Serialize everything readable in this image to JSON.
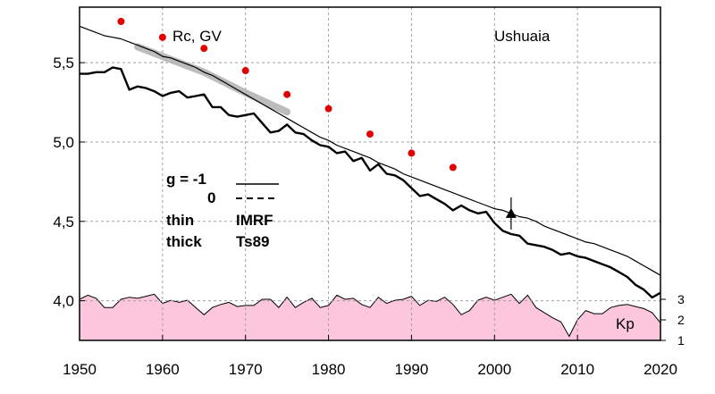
{
  "chart_data": {
    "type": "line",
    "title": "Ushuaia",
    "ylabel": "Rc, GV",
    "xlim": [
      1950,
      2020
    ],
    "ylim": [
      3.75,
      5.85
    ],
    "xticks": [
      "1950",
      "1960",
      "1970",
      "1980",
      "1990",
      "2000",
      "2010",
      "2020"
    ],
    "yticks": [
      "4,0",
      "4,5",
      "5,0",
      "5,5"
    ],
    "grid": true,
    "legend": {
      "rows": [
        {
          "label": "g  = -1"
        },
        {
          "label": "0"
        },
        {
          "label": "thin",
          "value": "IMRF"
        },
        {
          "label": "thick",
          "value": "Ts89"
        }
      ]
    },
    "series": [
      {
        "x": [
          1950,
          1951,
          1952,
          1953,
          1954,
          1955,
          1956,
          1957,
          1958,
          1959,
          1960,
          1961,
          1962,
          1963,
          1964,
          1965,
          1966,
          1967,
          1968,
          1969,
          1970,
          1971,
          1972,
          1973,
          1974,
          1975,
          1976,
          1977,
          1978,
          1979,
          1980,
          1981,
          1982,
          1983,
          1984,
          1985,
          1986,
          1987,
          1988,
          1989,
          1990,
          1991,
          1992,
          1993,
          1994,
          1995,
          1996,
          1997,
          1998,
          1999,
          2000,
          2001,
          2002,
          2003,
          2004,
          2005,
          2006,
          2007,
          2008,
          2009,
          2010,
          2011,
          2012,
          2013,
          2014,
          2015,
          2016,
          2017,
          2018,
          2019,
          2020
        ],
        "values": [
          5.73,
          5.71,
          5.69,
          5.67,
          5.66,
          5.65,
          5.63,
          5.61,
          5.59,
          5.57,
          5.54,
          5.53,
          5.51,
          5.49,
          5.47,
          5.44,
          5.42,
          5.39,
          5.36,
          5.33,
          5.3,
          5.27,
          5.24,
          5.21,
          5.18,
          5.15,
          5.12,
          5.09,
          5.06,
          5.03,
          5.01,
          4.98,
          4.96,
          4.94,
          4.92,
          4.9,
          4.87,
          4.85,
          4.83,
          4.8,
          4.78,
          4.76,
          4.74,
          4.72,
          4.7,
          4.68,
          4.66,
          4.64,
          4.62,
          4.6,
          4.58,
          4.57,
          4.55,
          4.53,
          4.52,
          4.5,
          4.47,
          4.45,
          4.43,
          4.41,
          4.39,
          4.37,
          4.36,
          4.34,
          4.32,
          4.3,
          4.28,
          4.25,
          4.22,
          4.19,
          4.16
        ]
      },
      {
        "x": [
          1950,
          1951,
          1952,
          1953,
          1954,
          1955,
          1956,
          1957,
          1958,
          1959,
          1960,
          1961,
          1962,
          1963,
          1964,
          1965,
          1966,
          1967,
          1968,
          1969,
          1970,
          1971,
          1972,
          1973,
          1974,
          1975,
          1976,
          1977,
          1978,
          1979,
          1980,
          1981,
          1982,
          1983,
          1984,
          1985,
          1986,
          1987,
          1988,
          1989,
          1990,
          1991,
          1992,
          1993,
          1994,
          1995,
          1996,
          1997,
          1998,
          1999,
          2000,
          2001,
          2002,
          2003,
          2004,
          2005,
          2006,
          2007,
          2008,
          2009,
          2010,
          2011,
          2012,
          2013,
          2014,
          2015,
          2016,
          2017,
          2018,
          2019,
          2020
        ],
        "values": [
          5.43,
          5.43,
          5.44,
          5.44,
          5.47,
          5.46,
          5.33,
          5.35,
          5.34,
          5.32,
          5.29,
          5.31,
          5.32,
          5.28,
          5.29,
          5.3,
          5.22,
          5.22,
          5.17,
          5.16,
          5.17,
          5.18,
          5.12,
          5.06,
          5.07,
          5.11,
          5.06,
          5.05,
          5.01,
          4.98,
          4.97,
          4.93,
          4.94,
          4.88,
          4.9,
          4.82,
          4.86,
          4.8,
          4.79,
          4.76,
          4.71,
          4.66,
          4.67,
          4.64,
          4.61,
          4.57,
          4.6,
          4.57,
          4.55,
          4.56,
          4.49,
          4.44,
          4.42,
          4.41,
          4.36,
          4.35,
          4.34,
          4.32,
          4.29,
          4.3,
          4.28,
          4.27,
          4.25,
          4.23,
          4.21,
          4.18,
          4.15,
          4.1,
          4.07,
          4.02,
          4.05
        ]
      }
    ],
    "band": {
      "x": [
        1957,
        1960,
        1965,
        1970,
        1975
      ],
      "values": [
        5.6,
        5.54,
        5.44,
        5.31,
        5.19
      ]
    },
    "points": {
      "x": [
        1955,
        1960,
        1965,
        1970,
        1975,
        1980,
        1985,
        1990,
        1995
      ],
      "values": [
        5.76,
        5.66,
        5.59,
        5.45,
        5.3,
        5.21,
        5.05,
        4.93,
        4.84
      ]
    },
    "marker": {
      "x": 2002,
      "value": 4.55
    },
    "kp": {
      "label": "Kp",
      "yticks": [
        "1",
        "2",
        "3"
      ],
      "ylim": [
        1.0,
        3.0
      ],
      "x": [
        1950,
        1951,
        1952,
        1953,
        1954,
        1955,
        1956,
        1957,
        1958,
        1959,
        1960,
        1961,
        1962,
        1963,
        1964,
        1965,
        1966,
        1967,
        1968,
        1969,
        1970,
        1971,
        1972,
        1973,
        1974,
        1975,
        1976,
        1977,
        1978,
        1979,
        1980,
        1981,
        1982,
        1983,
        1984,
        1985,
        1986,
        1987,
        1988,
        1989,
        1990,
        1991,
        1992,
        1993,
        1994,
        1995,
        1996,
        1997,
        1998,
        1999,
        2000,
        2001,
        2002,
        2003,
        2004,
        2005,
        2006,
        2007,
        2008,
        2009,
        2010,
        2011,
        2012,
        2013,
        2014,
        2015,
        2016,
        2017,
        2018,
        2019,
        2020
      ],
      "values": [
        3.0,
        3.2,
        3.05,
        2.6,
        2.6,
        3.0,
        3.1,
        3.05,
        3.15,
        3.25,
        2.8,
        2.95,
        2.85,
        2.95,
        2.6,
        2.25,
        2.6,
        2.75,
        2.85,
        2.65,
        2.7,
        2.7,
        3.0,
        3.0,
        2.6,
        3.1,
        2.6,
        2.85,
        3.05,
        2.6,
        2.7,
        3.2,
        3.0,
        3.05,
        2.75,
        2.6,
        3.1,
        2.8,
        2.95,
        3.0,
        3.15,
        2.7,
        2.95,
        2.9,
        3.1,
        2.75,
        2.25,
        2.45,
        2.95,
        3.1,
        2.95,
        3.1,
        3.25,
        2.8,
        3.2,
        2.6,
        2.35,
        2.1,
        1.9,
        1.2,
        2.0,
        2.45,
        2.3,
        2.3,
        2.6,
        2.7,
        2.75,
        2.65,
        2.55,
        2.35,
        1.85
      ]
    },
    "colors": {
      "kp_fill": "#fcc6dc",
      "points": "#e00000",
      "band": "#b0b0b0",
      "grid": "#a0a0a0"
    }
  }
}
